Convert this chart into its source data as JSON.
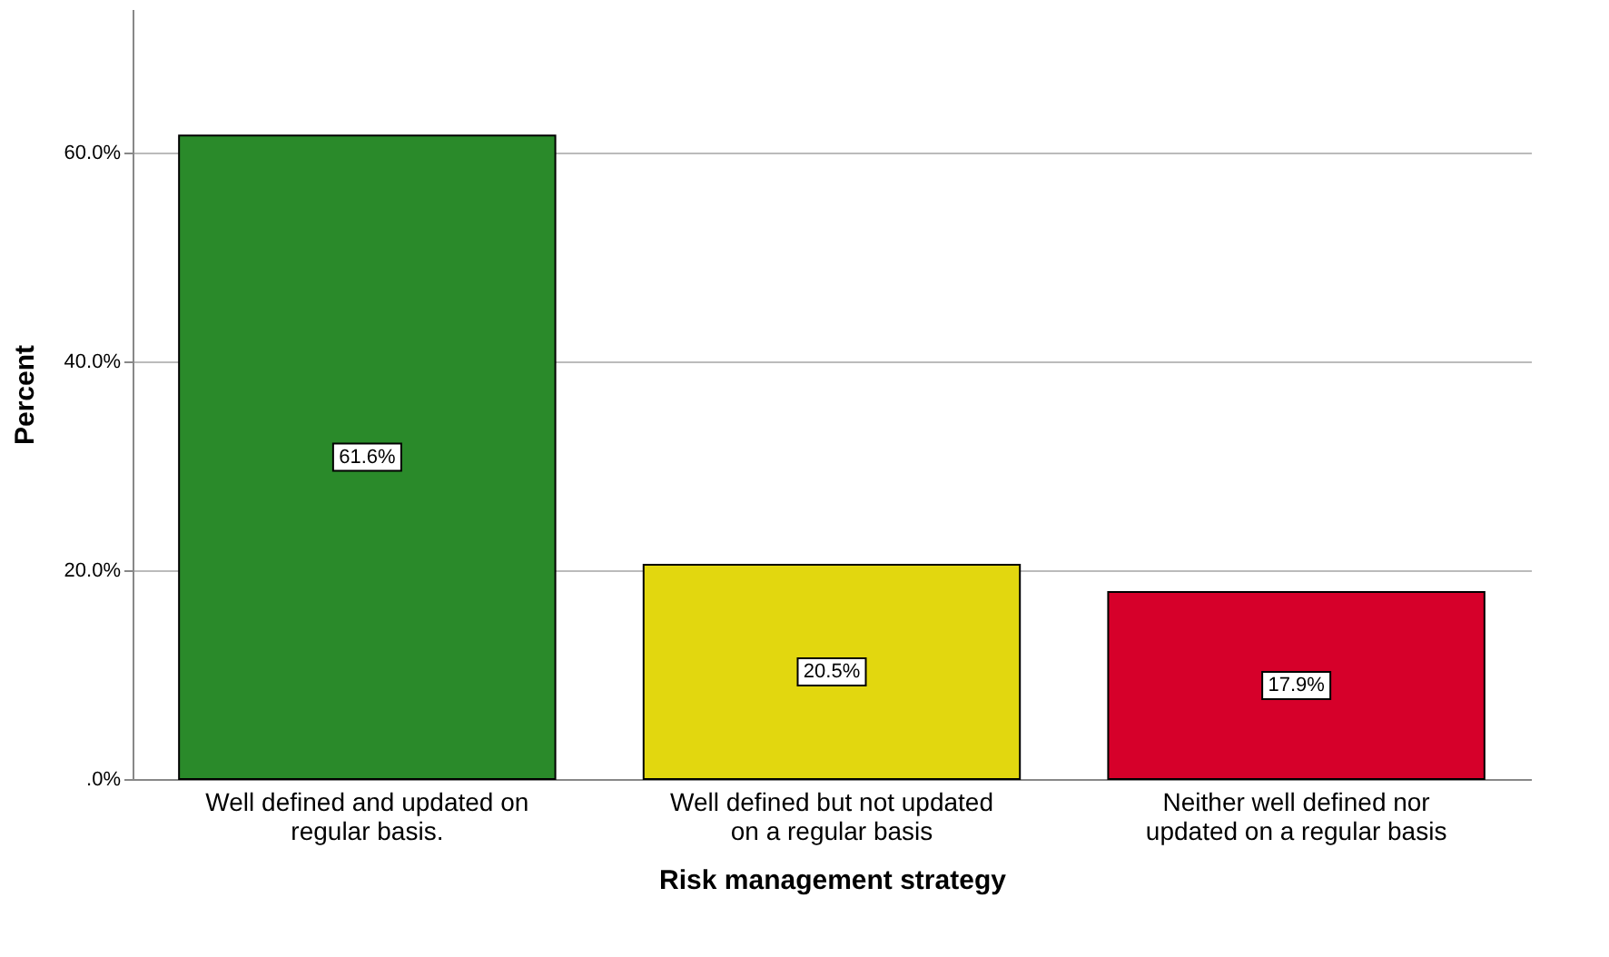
{
  "chart_data": {
    "type": "bar",
    "xlabel": "Risk management strategy",
    "ylabel": "Percent",
    "categories": [
      "Well defined and updated on regular basis.",
      "Well defined but not updated on a regular basis",
      "Neither well defined nor updated on a regular basis"
    ],
    "values": [
      61.6,
      20.5,
      17.9
    ],
    "colors": [
      "#2a8a2a",
      "#e2d70f",
      "#d6002a"
    ],
    "value_labels": [
      "61.6%",
      "20.5%",
      "17.9%"
    ],
    "ylim": [
      0,
      73.7
    ],
    "yticks": [
      {
        "value": 0,
        "label": ".0%"
      },
      {
        "value": 20,
        "label": "20.0%"
      },
      {
        "value": 40,
        "label": "40.0%"
      },
      {
        "value": 60,
        "label": "60.0%"
      }
    ],
    "grid": "y",
    "legend": false
  }
}
